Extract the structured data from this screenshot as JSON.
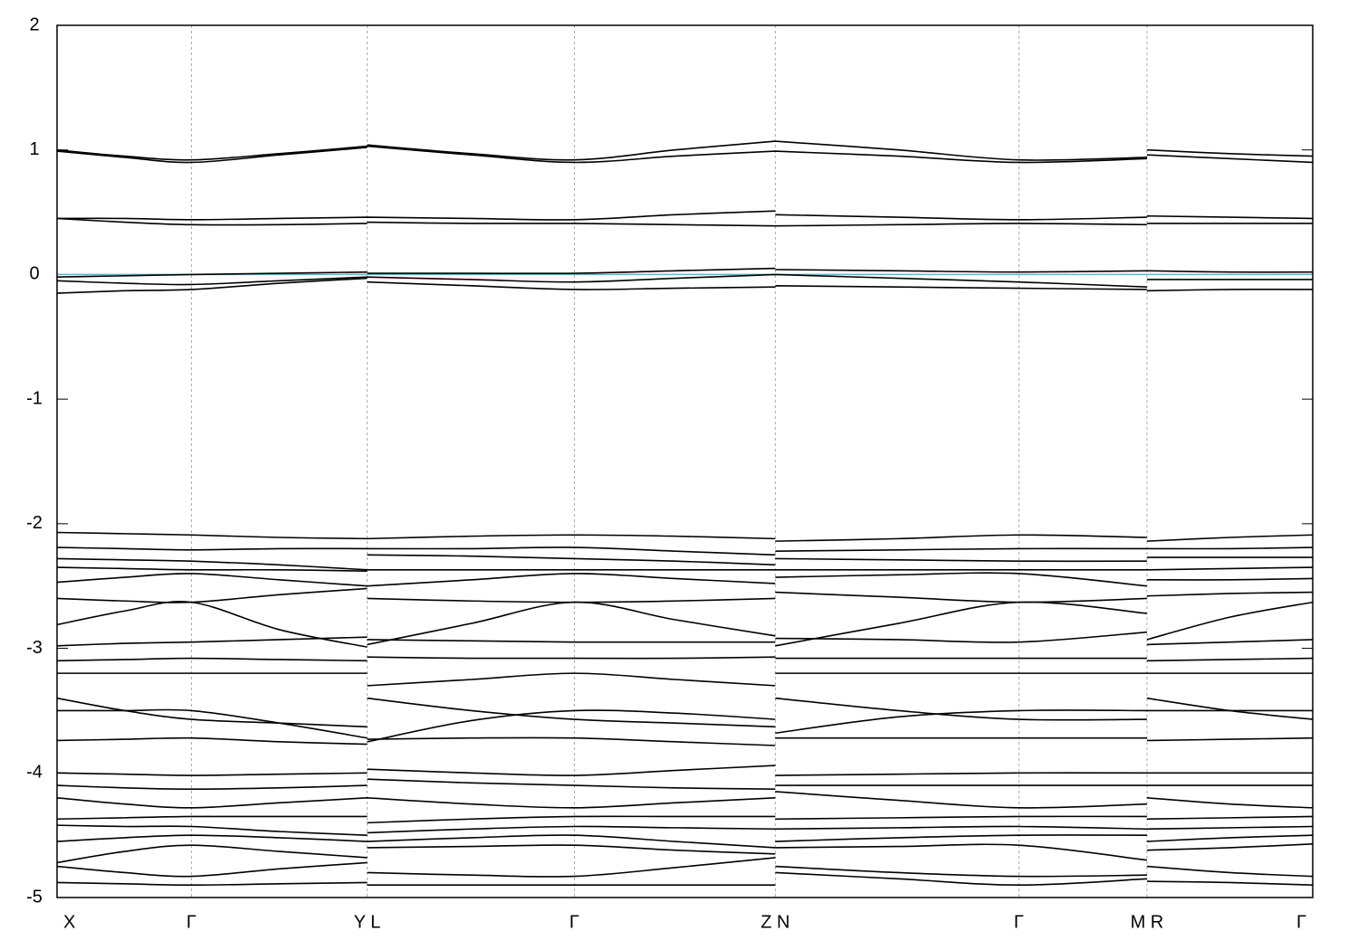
{
  "chart_data": {
    "type": "line",
    "x": [
      0,
      0.054,
      0.107,
      0.177,
      0.247,
      null,
      0.247,
      0.33,
      0.412,
      0.492,
      0.572,
      null,
      0.572,
      0.67,
      0.766,
      0.868,
      null,
      0.868,
      0.934,
      1.0
    ],
    "xlim": [
      0,
      1.0
    ],
    "xticks": [
      {
        "value": 0,
        "label": "X"
      },
      {
        "value": 0.107,
        "label": "Γ"
      },
      {
        "value": 0.247,
        "label": "Y L"
      },
      {
        "value": 0.412,
        "label": "Γ"
      },
      {
        "value": 0.572,
        "label": "Z N"
      },
      {
        "value": 0.766,
        "label": "Γ"
      },
      {
        "value": 0.868,
        "label": "M R"
      },
      {
        "value": 1.0,
        "label": "Γ"
      }
    ],
    "ylim": [
      -5,
      2
    ],
    "yticks": [
      -5,
      -4,
      -3,
      -2,
      -1,
      0,
      1,
      2
    ],
    "grid": true,
    "color": "#000000",
    "fermi_level": 0,
    "fermi_color": "#5bb8c8",
    "series": [
      {
        "values": [
          1.0,
          0.95,
          0.92,
          0.97,
          1.03,
          null,
          1.04,
          0.97,
          0.92,
          1.0,
          1.07,
          null,
          1.07,
          1.0,
          0.92,
          0.94,
          null,
          1.0,
          0.97,
          0.95
        ]
      },
      {
        "values": [
          0.99,
          0.94,
          0.9,
          0.96,
          1.02,
          null,
          1.03,
          0.96,
          0.9,
          0.95,
          0.99,
          null,
          0.99,
          0.95,
          0.9,
          0.93,
          null,
          0.96,
          0.93,
          0.9
        ]
      },
      {
        "values": [
          0.45,
          0.45,
          0.44,
          0.45,
          0.46,
          null,
          0.46,
          0.45,
          0.44,
          0.48,
          0.51,
          null,
          0.48,
          0.46,
          0.44,
          0.46,
          null,
          0.47,
          0.46,
          0.45
        ]
      },
      {
        "values": [
          0.45,
          0.42,
          0.4,
          0.4,
          0.41,
          null,
          0.42,
          0.41,
          0.41,
          0.4,
          0.39,
          null,
          0.39,
          0.4,
          0.41,
          0.4,
          null,
          0.41,
          0.41,
          0.41
        ]
      },
      {
        "values": [
          -0.02,
          -0.01,
          0.0,
          0.01,
          0.02,
          null,
          0.01,
          0.01,
          0.01,
          0.03,
          0.05,
          null,
          0.04,
          0.03,
          0.02,
          0.03,
          null,
          0.03,
          0.02,
          0.02
        ]
      },
      {
        "values": [
          -0.05,
          -0.07,
          -0.08,
          -0.05,
          -0.02,
          null,
          -0.02,
          -0.04,
          -0.06,
          -0.03,
          0.0,
          null,
          0.0,
          -0.03,
          -0.06,
          -0.1,
          null,
          -0.04,
          -0.04,
          -0.04
        ]
      },
      {
        "values": [
          -0.15,
          -0.13,
          -0.12,
          -0.07,
          -0.03,
          null,
          -0.06,
          -0.09,
          -0.12,
          -0.11,
          -0.1,
          null,
          -0.09,
          -0.1,
          -0.11,
          -0.12,
          null,
          -0.13,
          -0.12,
          -0.12
        ]
      },
      {
        "values": [
          -2.07,
          -2.08,
          -2.09,
          -2.11,
          -2.12,
          null,
          -2.12,
          -2.1,
          -2.09,
          -2.1,
          -2.12,
          null,
          -2.14,
          -2.12,
          -2.09,
          -2.11,
          null,
          -2.14,
          -2.11,
          -2.09
        ]
      },
      {
        "values": [
          -2.19,
          -2.2,
          -2.21,
          -2.2,
          -2.2,
          null,
          -2.2,
          -2.2,
          -2.19,
          -2.22,
          -2.25,
          null,
          -2.22,
          -2.21,
          -2.2,
          -2.2,
          null,
          -2.2,
          -2.2,
          -2.19
        ]
      },
      {
        "values": [
          -2.28,
          -2.29,
          -2.3,
          -2.33,
          -2.37,
          null,
          -2.25,
          -2.26,
          -2.28,
          -2.3,
          -2.33,
          null,
          -2.28,
          -2.29,
          -2.3,
          -2.3,
          null,
          -2.27,
          -2.27,
          -2.27
        ]
      },
      {
        "values": [
          -2.35,
          -2.36,
          -2.37,
          -2.37,
          -2.38,
          null,
          -2.37,
          -2.37,
          -2.37,
          -2.37,
          -2.37,
          null,
          -2.37,
          -2.37,
          -2.37,
          -2.37,
          null,
          -2.37,
          -2.36,
          -2.35
        ]
      },
      {
        "values": [
          -2.47,
          -2.43,
          -2.4,
          -2.45,
          -2.5,
          null,
          -2.5,
          -2.45,
          -2.4,
          -2.44,
          -2.48,
          null,
          -2.43,
          -2.41,
          -2.4,
          -2.5,
          null,
          -2.45,
          -2.45,
          -2.44
        ]
      },
      {
        "values": [
          -2.6,
          -2.62,
          -2.63,
          -2.57,
          -2.52,
          null,
          -2.6,
          -2.62,
          -2.63,
          -2.62,
          -2.6,
          null,
          -2.55,
          -2.59,
          -2.63,
          -2.6,
          null,
          -2.58,
          -2.56,
          -2.55
        ]
      },
      {
        "values": [
          -2.81,
          -2.7,
          -2.63,
          -2.85,
          -2.99,
          null,
          -2.97,
          -2.8,
          -2.63,
          -2.77,
          -2.9,
          null,
          -2.98,
          -2.8,
          -2.63,
          -2.72,
          null,
          -2.93,
          -2.75,
          -2.63
        ]
      },
      {
        "values": [
          -2.98,
          -2.96,
          -2.95,
          -2.93,
          -2.91,
          null,
          -2.93,
          -2.94,
          -2.95,
          -2.95,
          -2.95,
          null,
          -2.92,
          -2.93,
          -2.95,
          -2.87,
          null,
          -2.97,
          -2.95,
          -2.93
        ]
      },
      {
        "values": [
          -3.1,
          -3.09,
          -3.08,
          -3.09,
          -3.1,
          null,
          -3.07,
          -3.08,
          -3.08,
          -3.08,
          -3.07,
          null,
          -3.08,
          -3.08,
          -3.08,
          -3.08,
          null,
          -3.1,
          -3.09,
          -3.08
        ]
      },
      {
        "values": [
          -3.2,
          -3.2,
          -3.2,
          -3.2,
          -3.2,
          null,
          -3.3,
          -3.25,
          -3.2,
          -3.25,
          -3.3,
          null,
          -3.2,
          -3.2,
          -3.2,
          -3.2,
          null,
          -3.2,
          -3.2,
          -3.2
        ]
      },
      {
        "values": [
          -3.4,
          -3.5,
          -3.57,
          -3.6,
          -3.63,
          null,
          -3.4,
          -3.5,
          -3.57,
          -3.6,
          -3.63,
          null,
          -3.4,
          -3.5,
          -3.57,
          -3.57,
          null,
          -3.4,
          -3.5,
          -3.57
        ]
      },
      {
        "values": [
          -3.5,
          -3.5,
          -3.5,
          -3.6,
          -3.72,
          null,
          -3.75,
          -3.58,
          -3.5,
          -3.52,
          -3.57,
          null,
          -3.68,
          -3.55,
          -3.5,
          -3.5,
          null,
          -3.5,
          -3.5,
          -3.5
        ]
      },
      {
        "values": [
          -3.74,
          -3.73,
          -3.72,
          -3.75,
          -3.77,
          null,
          -3.73,
          -3.72,
          -3.72,
          -3.75,
          -3.78,
          null,
          -3.72,
          -3.72,
          -3.72,
          -3.72,
          null,
          -3.74,
          -3.73,
          -3.72
        ]
      },
      {
        "values": [
          -4.0,
          -4.01,
          -4.02,
          -4.01,
          -4.0,
          null,
          -3.97,
          -4.0,
          -4.02,
          -3.98,
          -3.94,
          null,
          -4.02,
          -4.01,
          -4.0,
          -4.0,
          null,
          -4.0,
          -4.0,
          -4.0
        ]
      },
      {
        "values": [
          -4.1,
          -4.12,
          -4.13,
          -4.12,
          -4.1,
          null,
          -4.05,
          -4.08,
          -4.1,
          -4.12,
          -4.13,
          null,
          -4.1,
          -4.1,
          -4.1,
          -4.1,
          null,
          -4.1,
          -4.1,
          -4.1
        ]
      },
      {
        "values": [
          -4.2,
          -4.25,
          -4.28,
          -4.24,
          -4.2,
          null,
          -4.2,
          -4.25,
          -4.28,
          -4.24,
          -4.2,
          null,
          -4.15,
          -4.22,
          -4.28,
          -4.25,
          null,
          -4.2,
          -4.25,
          -4.28
        ]
      },
      {
        "values": [
          -4.37,
          -4.36,
          -4.35,
          -4.35,
          -4.35,
          null,
          -4.4,
          -4.37,
          -4.35,
          -4.35,
          -4.35,
          null,
          -4.37,
          -4.36,
          -4.35,
          -4.35,
          null,
          -4.37,
          -4.36,
          -4.35
        ]
      },
      {
        "values": [
          -4.42,
          -4.43,
          -4.43,
          -4.47,
          -4.5,
          null,
          -4.48,
          -4.45,
          -4.43,
          -4.44,
          -4.45,
          null,
          -4.45,
          -4.44,
          -4.43,
          -4.45,
          null,
          -4.45,
          -4.44,
          -4.43
        ]
      },
      {
        "values": [
          -4.55,
          -4.52,
          -4.5,
          -4.52,
          -4.55,
          null,
          -4.55,
          -4.52,
          -4.5,
          -4.55,
          -4.6,
          null,
          -4.55,
          -4.52,
          -4.5,
          -4.5,
          null,
          -4.55,
          -4.52,
          -4.5
        ]
      },
      {
        "values": [
          -4.72,
          -4.63,
          -4.58,
          -4.63,
          -4.68,
          null,
          -4.6,
          -4.59,
          -4.58,
          -4.62,
          -4.65,
          null,
          -4.6,
          -4.59,
          -4.58,
          -4.7,
          null,
          -4.62,
          -4.6,
          -4.57
        ]
      },
      {
        "values": [
          -4.75,
          -4.8,
          -4.83,
          -4.77,
          -4.72,
          null,
          -4.8,
          -4.82,
          -4.83,
          -4.76,
          -4.68,
          null,
          -4.75,
          -4.8,
          -4.83,
          -4.82,
          null,
          -4.75,
          -4.8,
          -4.83
        ]
      },
      {
        "values": [
          -4.88,
          -4.89,
          -4.9,
          -4.89,
          -4.88,
          null,
          -4.9,
          -4.9,
          -4.9,
          -4.9,
          -4.9,
          null,
          -4.8,
          -4.85,
          -4.9,
          -4.85,
          null,
          -4.87,
          -4.88,
          -4.9
        ]
      }
    ]
  }
}
